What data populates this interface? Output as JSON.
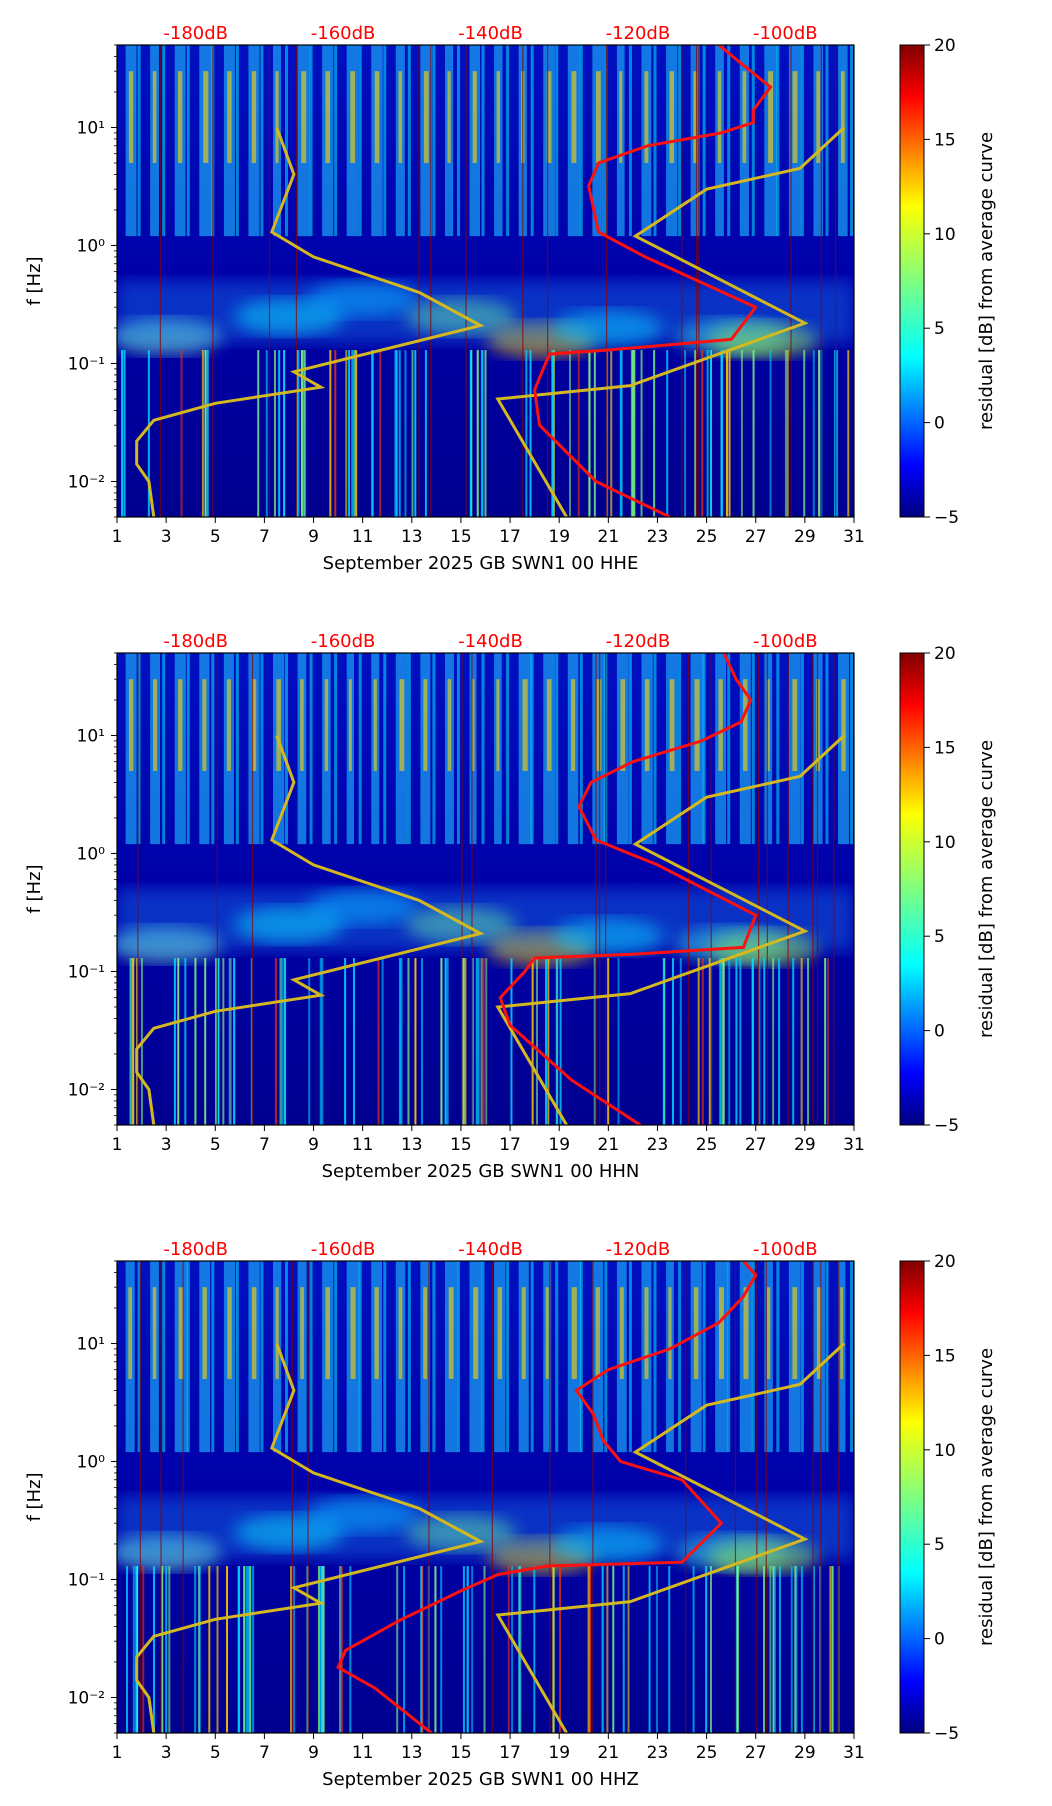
{
  "colors": {
    "background_low": "#00007f",
    "model_curve": "#d4b820",
    "psd_curve": "#ff1010",
    "db_label": "#ff0000",
    "grid_line": "#8b0000"
  },
  "chart_data": [
    {
      "type": "heatmap",
      "component": "HHE",
      "xlabel": "September 2025 GB SWN1 00 HHE",
      "ylabel": "f [Hz]",
      "x_ticks": [
        "1",
        "3",
        "5",
        "7",
        "9",
        "11",
        "13",
        "15",
        "17",
        "19",
        "21",
        "23",
        "25",
        "27",
        "29",
        "31"
      ],
      "x_range": [
        1,
        31
      ],
      "y_range_hz": [
        0.005,
        50
      ],
      "y_ticks": [
        {
          "label": "10⁻²",
          "value": 0.01
        },
        {
          "label": "10⁻¹",
          "value": 0.1
        },
        {
          "label": "10⁰",
          "value": 1
        },
        {
          "label": "10¹",
          "value": 10
        }
      ],
      "db_ticks": [
        "-180dB",
        "-160dB",
        "-140dB",
        "-120dB",
        "-100dB"
      ],
      "db_range": [
        -190,
        -90
      ],
      "colorbar": {
        "label": "residual [dB] from average curve",
        "min": -5,
        "max": 20,
        "ticks": [
          "20",
          "15",
          "10",
          "5",
          "0",
          "−5"
        ]
      },
      "model_curve": [
        [
          2.5,
          0.005
        ],
        [
          2.3,
          0.01
        ],
        [
          1.8,
          0.014
        ],
        [
          1.8,
          0.022
        ],
        [
          2.5,
          0.033
        ],
        [
          5,
          0.046
        ],
        [
          9.3,
          0.063
        ],
        [
          8.2,
          0.085
        ],
        [
          15.8,
          0.21
        ],
        [
          13.3,
          0.4
        ],
        [
          9,
          0.8
        ],
        [
          7.3,
          1.3
        ],
        [
          8.2,
          4
        ],
        [
          7.5,
          10
        ]
      ],
      "model_curve_right": [
        [
          19.3,
          0.005
        ],
        [
          16.5,
          0.05
        ],
        [
          21.9,
          0.065
        ],
        [
          29,
          0.22
        ],
        [
          22.1,
          1.2
        ],
        [
          25,
          3
        ],
        [
          28.8,
          4.5
        ],
        [
          30.6,
          10
        ]
      ],
      "psd_curve": [
        [
          23.5,
          0.005
        ],
        [
          20.5,
          0.01
        ],
        [
          18.2,
          0.03
        ],
        [
          18,
          0.06
        ],
        [
          18.6,
          0.12
        ],
        [
          21,
          0.13
        ],
        [
          26,
          0.16
        ],
        [
          27,
          0.3
        ],
        [
          22.5,
          0.8
        ],
        [
          20.6,
          1.3
        ],
        [
          20.2,
          3.2
        ],
        [
          20.6,
          5
        ],
        [
          22.6,
          7
        ],
        [
          25.6,
          9
        ],
        [
          26.9,
          11
        ],
        [
          26.9,
          14
        ],
        [
          27.6,
          22
        ],
        [
          26.4,
          35
        ],
        [
          25.5,
          50
        ]
      ]
    },
    {
      "type": "heatmap",
      "component": "HHN",
      "xlabel": "September 2025 GB SWN1 00 HHN",
      "ylabel": "f [Hz]",
      "x_ticks": [
        "1",
        "3",
        "5",
        "7",
        "9",
        "11",
        "13",
        "15",
        "17",
        "19",
        "21",
        "23",
        "25",
        "27",
        "29",
        "31"
      ],
      "x_range": [
        1,
        31
      ],
      "y_range_hz": [
        0.005,
        50
      ],
      "y_ticks": [
        {
          "label": "10⁻²",
          "value": 0.01
        },
        {
          "label": "10⁻¹",
          "value": 0.1
        },
        {
          "label": "10⁰",
          "value": 1
        },
        {
          "label": "10¹",
          "value": 10
        }
      ],
      "db_ticks": [
        "-180dB",
        "-160dB",
        "-140dB",
        "-120dB",
        "-100dB"
      ],
      "db_range": [
        -190,
        -90
      ],
      "colorbar": {
        "label": "residual [dB] from average curve",
        "min": -5,
        "max": 20,
        "ticks": [
          "20",
          "15",
          "10",
          "5",
          "0",
          "−5"
        ]
      },
      "model_curve": [
        [
          2.5,
          0.005
        ],
        [
          2.3,
          0.01
        ],
        [
          1.8,
          0.014
        ],
        [
          1.8,
          0.022
        ],
        [
          2.5,
          0.033
        ],
        [
          5,
          0.046
        ],
        [
          9.3,
          0.063
        ],
        [
          8.2,
          0.085
        ],
        [
          15.8,
          0.21
        ],
        [
          13.3,
          0.4
        ],
        [
          9,
          0.8
        ],
        [
          7.3,
          1.3
        ],
        [
          8.2,
          4
        ],
        [
          7.5,
          10
        ]
      ],
      "model_curve_right": [
        [
          19.3,
          0.005
        ],
        [
          16.5,
          0.05
        ],
        [
          21.9,
          0.065
        ],
        [
          29,
          0.22
        ],
        [
          22.1,
          1.2
        ],
        [
          25,
          3
        ],
        [
          28.8,
          4.5
        ],
        [
          30.6,
          10
        ]
      ],
      "psd_curve": [
        [
          22.3,
          0.005
        ],
        [
          19.5,
          0.012
        ],
        [
          17,
          0.035
        ],
        [
          16.6,
          0.06
        ],
        [
          17.6,
          0.1
        ],
        [
          18,
          0.13
        ],
        [
          22,
          0.14
        ],
        [
          26.5,
          0.16
        ],
        [
          27,
          0.3
        ],
        [
          23,
          0.8
        ],
        [
          20.5,
          1.3
        ],
        [
          19.8,
          2.5
        ],
        [
          20.3,
          4
        ],
        [
          22,
          6
        ],
        [
          24.8,
          9
        ],
        [
          26.4,
          13
        ],
        [
          26.8,
          20
        ],
        [
          26.2,
          30
        ],
        [
          25.7,
          50
        ]
      ]
    },
    {
      "type": "heatmap",
      "component": "HHZ",
      "xlabel": "September 2025 GB SWN1 00 HHZ",
      "ylabel": "f [Hz]",
      "x_ticks": [
        "1",
        "3",
        "5",
        "7",
        "9",
        "11",
        "13",
        "15",
        "17",
        "19",
        "21",
        "23",
        "25",
        "27",
        "29",
        "31"
      ],
      "x_range": [
        1,
        31
      ],
      "y_range_hz": [
        0.005,
        50
      ],
      "y_ticks": [
        {
          "label": "10⁻²",
          "value": 0.01
        },
        {
          "label": "10⁻¹",
          "value": 0.1
        },
        {
          "label": "10⁰",
          "value": 1
        },
        {
          "label": "10¹",
          "value": 10
        }
      ],
      "db_ticks": [
        "-180dB",
        "-160dB",
        "-140dB",
        "-120dB",
        "-100dB"
      ],
      "db_range": [
        -190,
        -90
      ],
      "colorbar": {
        "label": "residual [dB] from average curve",
        "min": -5,
        "max": 20,
        "ticks": [
          "20",
          "15",
          "10",
          "5",
          "0",
          "−5"
        ]
      },
      "model_curve": [
        [
          2.5,
          0.005
        ],
        [
          2.3,
          0.01
        ],
        [
          1.8,
          0.014
        ],
        [
          1.8,
          0.022
        ],
        [
          2.5,
          0.033
        ],
        [
          5,
          0.046
        ],
        [
          9.3,
          0.063
        ],
        [
          8.2,
          0.085
        ],
        [
          15.8,
          0.21
        ],
        [
          13.3,
          0.4
        ],
        [
          9,
          0.8
        ],
        [
          7.3,
          1.3
        ],
        [
          8.2,
          4
        ],
        [
          7.5,
          10
        ]
      ],
      "model_curve_right": [
        [
          19.3,
          0.005
        ],
        [
          16.5,
          0.05
        ],
        [
          21.9,
          0.065
        ],
        [
          29,
          0.22
        ],
        [
          22.1,
          1.2
        ],
        [
          25,
          3
        ],
        [
          28.8,
          4.5
        ],
        [
          30.6,
          10
        ]
      ],
      "psd_curve": [
        [
          13.8,
          0.005
        ],
        [
          11.5,
          0.012
        ],
        [
          10,
          0.018
        ],
        [
          10.3,
          0.025
        ],
        [
          12.5,
          0.045
        ],
        [
          15,
          0.08
        ],
        [
          16.5,
          0.11
        ],
        [
          18.5,
          0.13
        ],
        [
          24,
          0.14
        ],
        [
          25.6,
          0.3
        ],
        [
          24,
          0.7
        ],
        [
          21.5,
          1
        ],
        [
          20.8,
          1.5
        ],
        [
          20.4,
          2.5
        ],
        [
          19.7,
          4
        ],
        [
          21,
          6
        ],
        [
          23.5,
          9
        ],
        [
          25.5,
          15
        ],
        [
          26.5,
          25
        ],
        [
          27,
          38
        ],
        [
          26.5,
          50
        ]
      ]
    }
  ]
}
